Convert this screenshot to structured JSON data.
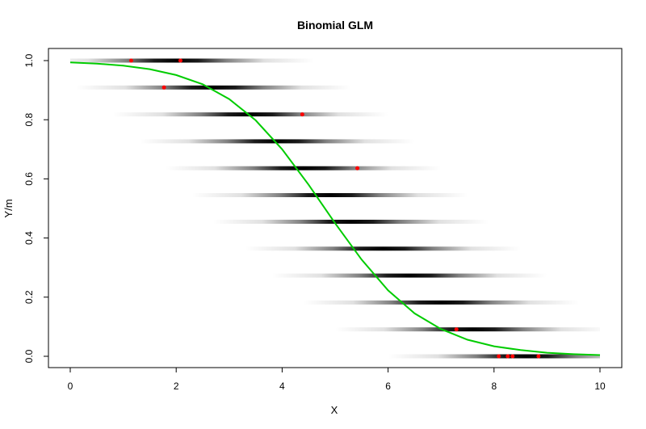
{
  "chart_data": {
    "type": "scatter",
    "title": "Binomial GLM",
    "xlabel": "X",
    "ylabel": "Y/m",
    "xlim": [
      0,
      10
    ],
    "ylim": [
      0,
      1
    ],
    "x_ticks": [
      "0",
      "2",
      "4",
      "6",
      "8",
      "10"
    ],
    "y_ticks": [
      "0.0",
      "0.2",
      "0.4",
      "0.6",
      "0.8",
      "1.0"
    ],
    "grid": false,
    "legend": "none",
    "colors": {
      "points": "#ff0000",
      "curve": "#00cc00",
      "bands": "#000000"
    },
    "bands": [
      {
        "level": 1.0,
        "center": 2.0
      },
      {
        "level": 0.909,
        "center": 2.7
      },
      {
        "level": 0.818,
        "center": 3.4
      },
      {
        "level": 0.727,
        "center": 3.9
      },
      {
        "level": 0.636,
        "center": 4.4
      },
      {
        "level": 0.545,
        "center": 4.9
      },
      {
        "level": 0.455,
        "center": 5.3
      },
      {
        "level": 0.364,
        "center": 5.9
      },
      {
        "level": 0.273,
        "center": 6.4
      },
      {
        "level": 0.182,
        "center": 7.0
      },
      {
        "level": 0.091,
        "center": 7.6
      },
      {
        "level": 0.0,
        "center": 8.6
      }
    ],
    "points": [
      {
        "x": 1.15,
        "y": 1.0
      },
      {
        "x": 2.08,
        "y": 1.0
      },
      {
        "x": 1.77,
        "y": 0.909
      },
      {
        "x": 4.38,
        "y": 0.818
      },
      {
        "x": 5.42,
        "y": 0.636
      },
      {
        "x": 7.29,
        "y": 0.091
      },
      {
        "x": 8.09,
        "y": 0.0
      },
      {
        "x": 8.26,
        "y": 0.0
      },
      {
        "x": 8.35,
        "y": 0.0
      },
      {
        "x": 8.84,
        "y": 0.0
      }
    ],
    "curve": {
      "type": "logistic",
      "x": [
        0,
        0.5,
        1,
        1.5,
        2,
        2.5,
        3,
        3.5,
        4,
        4.5,
        5,
        5.5,
        6,
        6.5,
        7,
        7.5,
        8,
        8.5,
        9,
        9.5,
        10
      ],
      "y": [
        0.994,
        0.99,
        0.983,
        0.971,
        0.951,
        0.92,
        0.87,
        0.798,
        0.7,
        0.58,
        0.45,
        0.327,
        0.223,
        0.145,
        0.092,
        0.056,
        0.034,
        0.021,
        0.012,
        0.007,
        0.004
      ]
    }
  }
}
